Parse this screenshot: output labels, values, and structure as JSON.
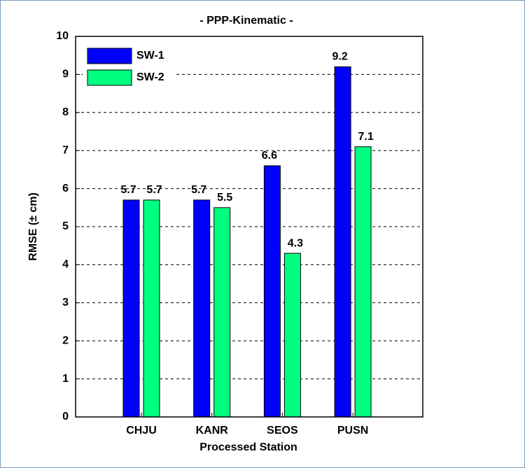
{
  "chart_data": {
    "type": "bar",
    "title": "- PPP-Kinematic -",
    "x_label": "Processed Station",
    "y_label": "RMSE (± cm)",
    "categories": [
      "CHJU",
      "KANR",
      "SEOS",
      "PUSN"
    ],
    "series": [
      {
        "name": "SW-1",
        "color": "#0000ff",
        "values": [
          5.7,
          5.7,
          6.6,
          9.2
        ]
      },
      {
        "name": "SW-2",
        "color": "#00ff80",
        "values": [
          5.7,
          5.5,
          4.3,
          7.1
        ]
      }
    ],
    "ylim": [
      0,
      10
    ],
    "yticks": [
      0,
      1,
      2,
      3,
      4,
      5,
      6,
      7,
      8,
      9,
      10
    ],
    "grid": true,
    "legend": "upper-left"
  }
}
